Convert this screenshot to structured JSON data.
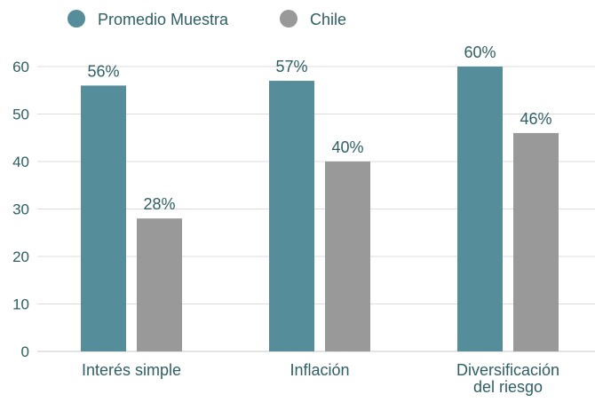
{
  "chart_data": {
    "type": "bar",
    "categories": [
      "Interés simple",
      "Inflación",
      "Diversificación del riesgo"
    ],
    "category_lines": [
      [
        "Interés simple"
      ],
      [
        "Inflación"
      ],
      [
        "Diversificación",
        "del riesgo"
      ]
    ],
    "series": [
      {
        "name": "Promedio Muestra",
        "values": [
          56,
          57,
          60
        ],
        "labels": [
          "56%",
          "57%",
          "60%"
        ],
        "color": "#558e9a"
      },
      {
        "name": "Chile",
        "values": [
          28,
          40,
          46
        ],
        "labels": [
          "28%",
          "40%",
          "46%"
        ],
        "color": "#999999"
      }
    ],
    "ylim": [
      0,
      60
    ],
    "yticks": [
      0,
      10,
      20,
      30,
      40,
      50,
      60
    ],
    "grid": true,
    "legend_position": "top-left",
    "text_color": "#2e5f66",
    "grid_color": "#dcdcdc"
  }
}
